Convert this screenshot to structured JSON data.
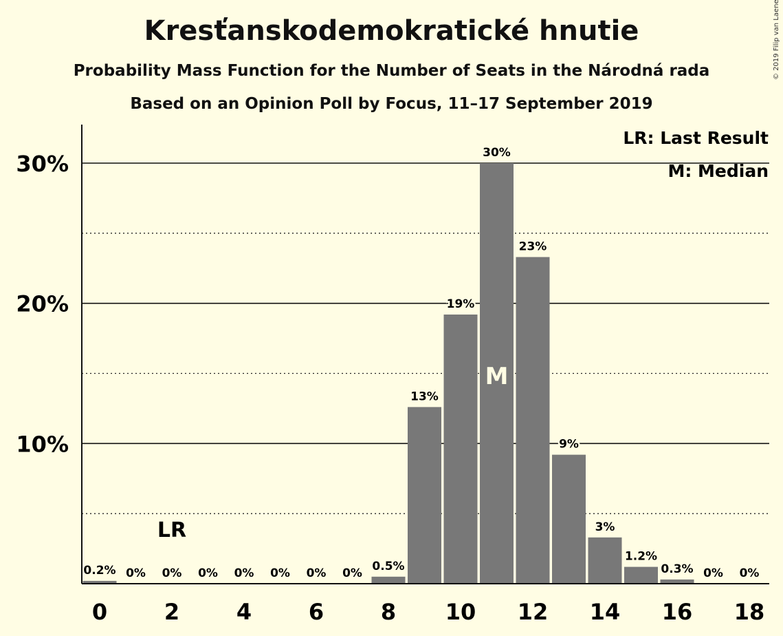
{
  "chart_data": {
    "type": "bar",
    "title": "Kresťanskodemokratické hnutie",
    "subtitle": "Probability Mass Function for the Number of Seats in the Národná rada",
    "subtitle2": "Based on an Opinion Poll by Focus, 11–17 September 2019",
    "copyright": "© 2019 Filip van Laenen",
    "categories": [
      0,
      1,
      2,
      3,
      4,
      5,
      6,
      7,
      8,
      9,
      10,
      11,
      12,
      13,
      14,
      15,
      16,
      17,
      18
    ],
    "values": [
      0.2,
      0,
      0,
      0,
      0,
      0,
      0,
      0,
      0.5,
      12.6,
      19.2,
      30,
      23.3,
      9.2,
      3.3,
      1.2,
      0.3,
      0,
      0
    ],
    "data_labels": [
      "0.2%",
      "0%",
      "0%",
      "0%",
      "0%",
      "0%",
      "0%",
      "0%",
      "0.5%",
      "13%",
      "19%",
      "30%",
      "23%",
      "9%",
      "3%",
      "1.2%",
      "0.3%",
      "0%",
      "0%"
    ],
    "x_tick_labels": [
      "0",
      "2",
      "4",
      "6",
      "8",
      "10",
      "12",
      "14",
      "16",
      "18"
    ],
    "x_tick_values": [
      0,
      2,
      4,
      6,
      8,
      10,
      12,
      14,
      16,
      18
    ],
    "y_tick_labels": [
      "10%",
      "20%",
      "30%"
    ],
    "y_tick_values": [
      10,
      20,
      30
    ],
    "y_minor_ticks": [
      5,
      15,
      25
    ],
    "ylim": [
      0,
      32.7
    ],
    "last_result_seat": 2,
    "last_result_label": "LR",
    "median_seat": 11,
    "median_label": "M",
    "legend": [
      "LR: Last Result",
      "M: Median"
    ],
    "legend_position": "top-right",
    "bar_color": "#787878",
    "background_color": "#fffde4"
  }
}
